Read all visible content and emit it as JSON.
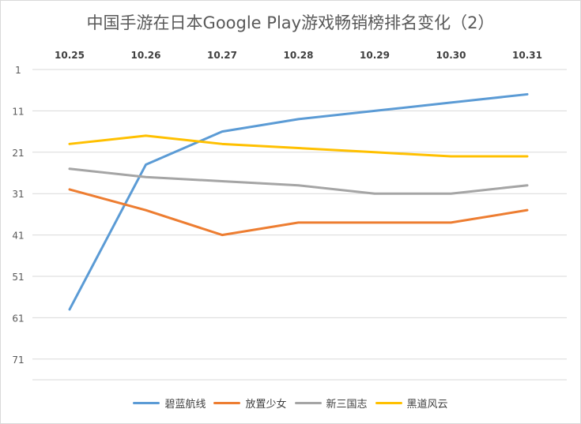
{
  "chart_data": {
    "type": "line",
    "title": "中国手游在日本Google Play游戏畅销榜排名变化（2）",
    "xlabel": "",
    "ylabel": "",
    "categories": [
      "10.25",
      "10.26",
      "10.27",
      "10.28",
      "10.29",
      "10.30",
      "10.31"
    ],
    "x_axis_position": "top",
    "y_reversed": true,
    "ylim": [
      1,
      76
    ],
    "yticks": [
      1,
      11,
      21,
      31,
      41,
      51,
      61,
      71
    ],
    "grid": true,
    "legend_position": "bottom",
    "series": [
      {
        "name": "碧蓝航线",
        "color": "#5b9bd5",
        "values": [
          59,
          24,
          16,
          13,
          11,
          9,
          7
        ]
      },
      {
        "name": "放置少女",
        "color": "#ed7d31",
        "values": [
          30,
          35,
          41,
          38,
          38,
          38,
          35
        ]
      },
      {
        "name": "新三国志",
        "color": "#a5a5a5",
        "values": [
          25,
          27,
          28,
          29,
          31,
          31,
          29
        ]
      },
      {
        "name": "黑道风云",
        "color": "#ffc000",
        "values": [
          19,
          17,
          19,
          20,
          21,
          22,
          22
        ]
      }
    ]
  }
}
